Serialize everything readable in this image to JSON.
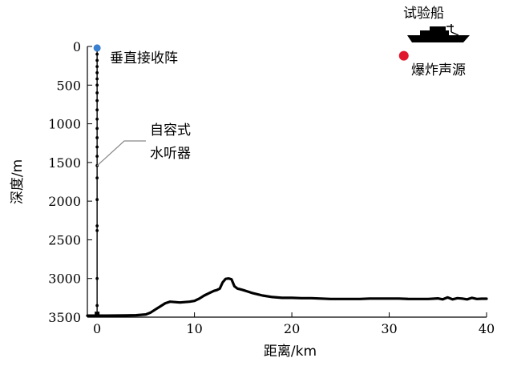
{
  "chart_data": {
    "type": "diagram",
    "xlabel": "距离/km",
    "ylabel": "深度/m",
    "xlim": [
      -1,
      40
    ],
    "ylim": [
      3500,
      0
    ],
    "xticks": [
      0,
      10,
      20,
      30,
      40
    ],
    "yticks": [
      0,
      500,
      1000,
      1500,
      2000,
      2500,
      3000,
      3500
    ],
    "seabed": {
      "x": [
        -1,
        0,
        1,
        2,
        3,
        4,
        5,
        5.5,
        6,
        6.5,
        7,
        7.5,
        8,
        8.5,
        9,
        9.5,
        10,
        10.5,
        11,
        11.5,
        12,
        12.3,
        12.6,
        12.9,
        13.2,
        13.5,
        13.8,
        14.1,
        14.4,
        14.7,
        15,
        15.5,
        16,
        17,
        18,
        19,
        20,
        21,
        22,
        23,
        24,
        25,
        26,
        27,
        28,
        29,
        30,
        31,
        32,
        33,
        34,
        35,
        35.5,
        36,
        36.5,
        37,
        37.5,
        38,
        38.5,
        39,
        39.5,
        40
      ],
      "depth": [
        3480,
        3480,
        3480,
        3479,
        3478,
        3475,
        3465,
        3440,
        3400,
        3360,
        3320,
        3300,
        3305,
        3310,
        3305,
        3300,
        3290,
        3260,
        3220,
        3190,
        3160,
        3150,
        3130,
        3050,
        3005,
        3000,
        3010,
        3100,
        3130,
        3140,
        3150,
        3170,
        3190,
        3220,
        3240,
        3250,
        3250,
        3255,
        3255,
        3260,
        3265,
        3265,
        3265,
        3265,
        3260,
        3260,
        3260,
        3260,
        3265,
        3265,
        3265,
        3258,
        3270,
        3245,
        3270,
        3255,
        3260,
        3270,
        3250,
        3265,
        3262,
        3262
      ]
    },
    "array": {
      "x": 0,
      "top_depth": 20,
      "bottom_depth": 3460,
      "hydrophone_depths": [
        100,
        180,
        260,
        340,
        420,
        500,
        600,
        700,
        820,
        940,
        1060,
        1180,
        1300,
        1420,
        1540,
        1700,
        1980,
        2320,
        2380,
        3000,
        3350
      ]
    },
    "source": {
      "x": 31.5,
      "depth": 120,
      "color": "#e0182b"
    },
    "buoy_color": "#3a7fd0",
    "ship": {
      "x": 34.5
    }
  },
  "annotations": {
    "vla": "垂直接收阵",
    "hydrophone_line1": "自容式",
    "hydrophone_line2": "水听器",
    "ship": "试验船",
    "source": "爆炸声源"
  }
}
